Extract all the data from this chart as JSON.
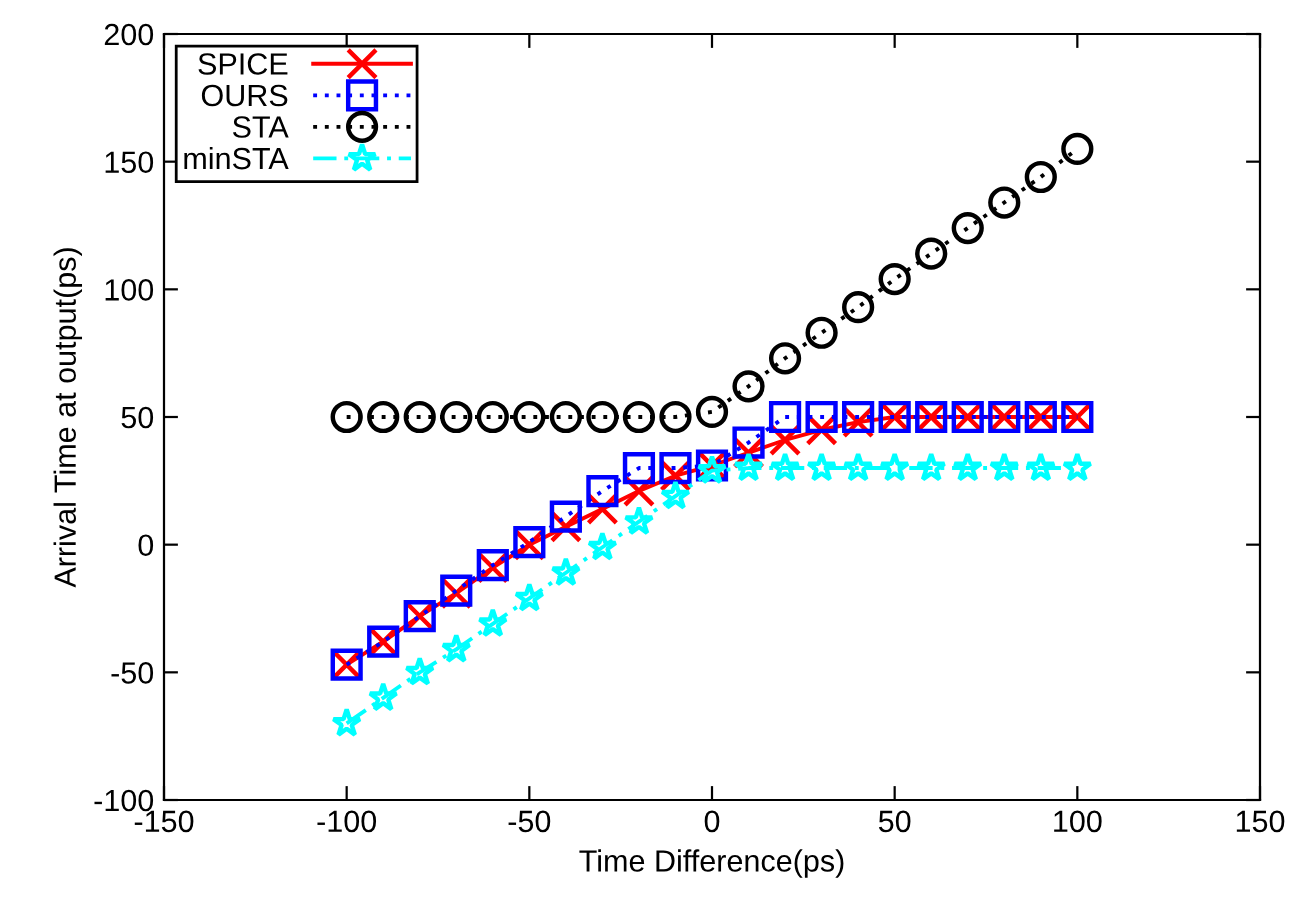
{
  "chart_data": {
    "type": "line",
    "xlabel": "Time Difference(ps)",
    "ylabel": "Arrival Time at output(ps)",
    "x": [
      -100,
      -90,
      -80,
      -70,
      -60,
      -50,
      -40,
      -30,
      -20,
      -10,
      0,
      10,
      20,
      30,
      40,
      50,
      60,
      70,
      80,
      90,
      100
    ],
    "series": [
      {
        "name": "SPICE",
        "color": "#ff0000",
        "marker": "cross",
        "line_style": "solid",
        "values": [
          -47,
          -38,
          -28,
          -19,
          -9,
          0,
          7,
          14,
          21,
          27,
          31,
          36,
          41,
          45,
          48,
          50,
          50,
          50,
          50,
          50,
          50
        ]
      },
      {
        "name": "OURS",
        "color": "#0000ff",
        "marker": "square",
        "line_style": "dotted",
        "values": [
          -47,
          -38,
          -28,
          -18,
          -8,
          1,
          11,
          21,
          30,
          30,
          31,
          40,
          50,
          50,
          50,
          50,
          50,
          50,
          50,
          50,
          50
        ]
      },
      {
        "name": "STA",
        "color": "#000000",
        "marker": "circle",
        "line_style": "dotted",
        "values": [
          50,
          50,
          50,
          50,
          50,
          50,
          50,
          50,
          50,
          50,
          52,
          62,
          73,
          83,
          93,
          104,
          114,
          124,
          134,
          144,
          155
        ]
      },
      {
        "name": "minSTA",
        "color": "#00ffff",
        "marker": "star",
        "line_style": "dashed",
        "values": [
          -70,
          -60,
          -50,
          -41,
          -31,
          -21,
          -11,
          -1,
          9,
          19,
          29,
          30,
          30,
          30,
          30,
          30,
          30,
          30,
          30,
          30,
          30
        ]
      }
    ],
    "xlim": [
      -150,
      150
    ],
    "xticks": [
      -150,
      -100,
      -50,
      0,
      50,
      100,
      150
    ],
    "ylim": [
      -100,
      200
    ],
    "yticks": [
      -100,
      -50,
      0,
      50,
      100,
      150,
      200
    ],
    "grid": false,
    "legend": "top left"
  }
}
